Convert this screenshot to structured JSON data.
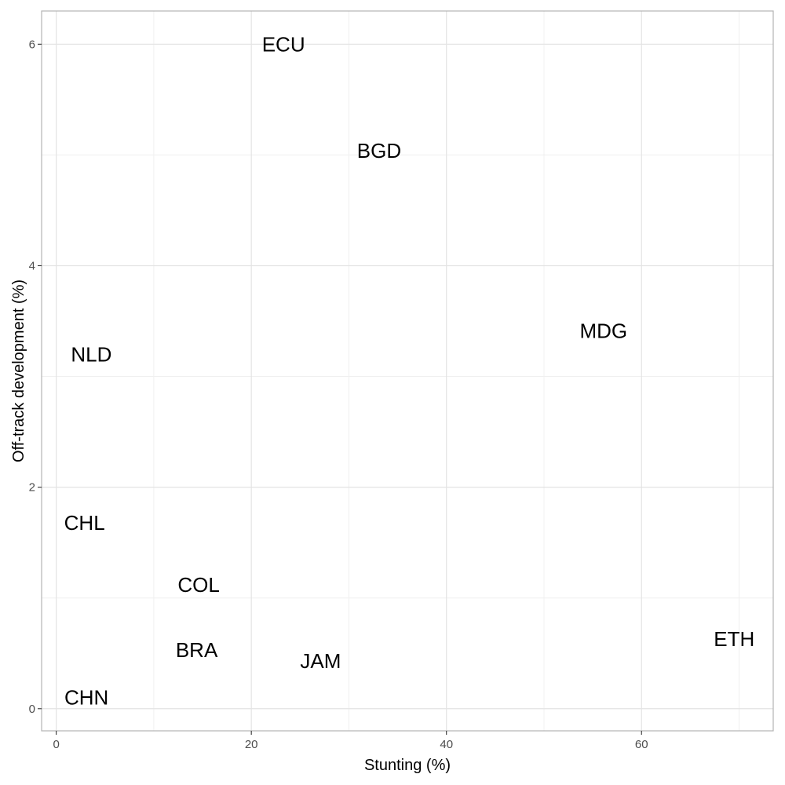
{
  "chart_data": {
    "type": "scatter",
    "title": "",
    "xlabel": "Stunting (%)",
    "ylabel": "Off-track development (%)",
    "xlim": [
      -1.5,
      73.5
    ],
    "ylim": [
      -0.2,
      6.3
    ],
    "x_ticks": [
      0,
      20,
      40,
      60
    ],
    "y_ticks": [
      0,
      2,
      4,
      6
    ],
    "x_minor_ticks": [
      10,
      30,
      50,
      70
    ],
    "y_minor_ticks": [
      1,
      3,
      5
    ],
    "grid": true,
    "points": [
      {
        "label": "ECU",
        "x": 23.3,
        "y": 6.0
      },
      {
        "label": "BGD",
        "x": 33.1,
        "y": 5.04
      },
      {
        "label": "MDG",
        "x": 56.1,
        "y": 3.41
      },
      {
        "label": "NLD",
        "x": 3.6,
        "y": 3.2
      },
      {
        "label": "CHL",
        "x": 2.9,
        "y": 1.68
      },
      {
        "label": "COL",
        "x": 14.6,
        "y": 1.12
      },
      {
        "label": "BRA",
        "x": 14.4,
        "y": 0.53
      },
      {
        "label": "JAM",
        "x": 27.1,
        "y": 0.43
      },
      {
        "label": "ETH",
        "x": 69.5,
        "y": 0.63
      },
      {
        "label": "CHN",
        "x": 3.1,
        "y": 0.1
      }
    ]
  }
}
